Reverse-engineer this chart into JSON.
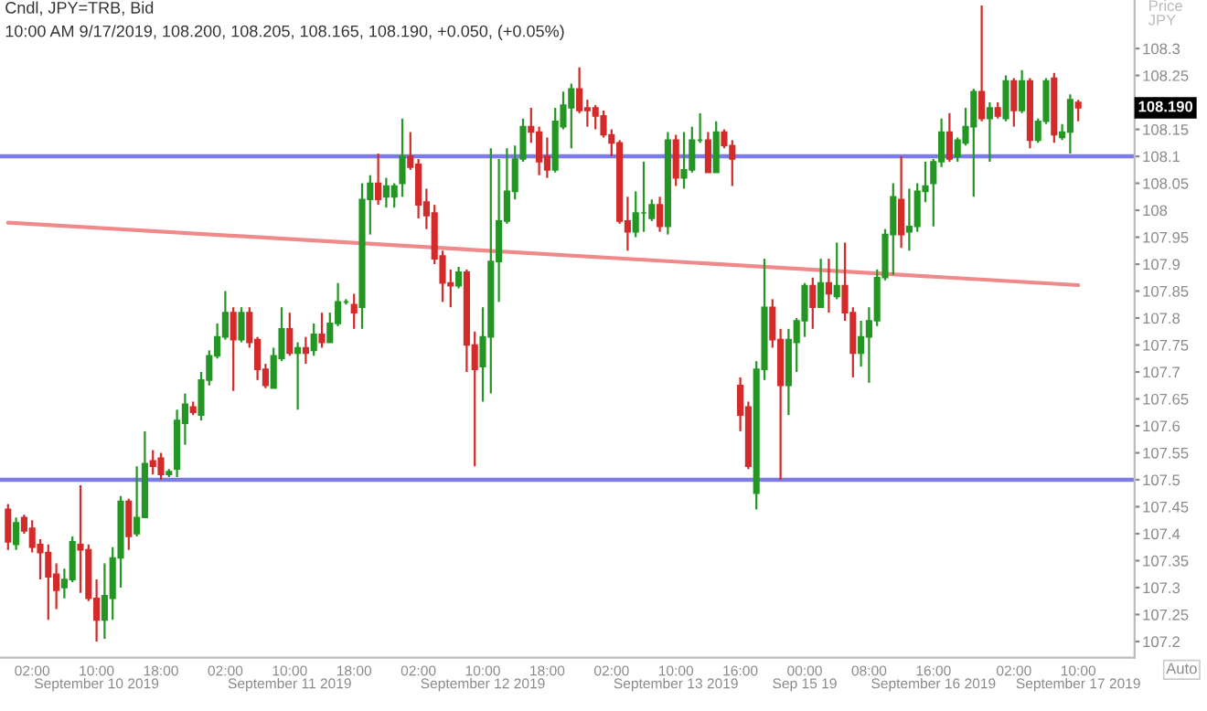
{
  "chart_data": {
    "type": "candlestick",
    "title": "Cndl, JPY=TRB, Bid",
    "subtitle": "10:00 AM 9/17/2019, 108.200, 108.205, 108.165, 108.190, +0.050, (+0.05%)",
    "ylabel": "Price\nJPY",
    "categories": [
      null,
      null,
      null,
      "02:00",
      null,
      null,
      null,
      null,
      null,
      null,
      null,
      "10:00\nSeptember 10 2019",
      null,
      null,
      null,
      null,
      null,
      null,
      null,
      "18:00",
      null,
      null,
      null,
      null,
      null,
      null,
      null,
      "02:00",
      null,
      null,
      null,
      null,
      null,
      null,
      null,
      "10:00\nSeptember 11 2019",
      null,
      null,
      null,
      null,
      null,
      null,
      null,
      "18:00",
      null,
      null,
      null,
      null,
      null,
      null,
      null,
      "02:00",
      null,
      null,
      null,
      null,
      null,
      null,
      null,
      "10:00\nSeptember 12 2019",
      null,
      null,
      null,
      null,
      null,
      null,
      null,
      "18:00",
      null,
      null,
      null,
      null,
      null,
      null,
      null,
      "02:00",
      null,
      null,
      null,
      null,
      null,
      null,
      null,
      "10:00\nSeptember 13 2019",
      null,
      null,
      null,
      null,
      null,
      null,
      null,
      "16:00",
      null,
      null,
      null,
      null,
      null,
      null,
      null,
      "00:00\nSep 15 19",
      null,
      null,
      null,
      null,
      null,
      null,
      null,
      "08:00",
      null,
      null,
      null,
      null,
      null,
      null,
      null,
      "16:00\nSeptember 16 2019",
      null,
      null,
      null,
      null,
      null,
      null,
      null,
      null,
      null,
      "02:00",
      null,
      null,
      null,
      null,
      null,
      null,
      null,
      "10:00\nSeptember 17 2019"
    ],
    "ohlc": [
      [
        107.445,
        107.455,
        107.37,
        107.385
      ],
      [
        107.38,
        107.43,
        107.37,
        107.42
      ],
      [
        107.43,
        107.435,
        107.4,
        107.405
      ],
      [
        107.41,
        107.425,
        107.365,
        107.375
      ],
      [
        107.38,
        107.39,
        107.315,
        107.365
      ],
      [
        107.365,
        107.38,
        107.24,
        107.32
      ],
      [
        107.325,
        107.345,
        107.26,
        107.295
      ],
      [
        107.3,
        107.335,
        107.28,
        107.315
      ],
      [
        107.315,
        107.395,
        107.31,
        107.385
      ],
      [
        107.38,
        107.49,
        107.29,
        107.37
      ],
      [
        107.37,
        107.38,
        107.275,
        107.28
      ],
      [
        107.28,
        107.315,
        107.2,
        107.24
      ],
      [
        107.24,
        107.345,
        107.205,
        107.285
      ],
      [
        107.28,
        107.375,
        107.24,
        107.355
      ],
      [
        107.355,
        107.47,
        107.3,
        107.46
      ],
      [
        107.46,
        107.465,
        107.37,
        107.395
      ],
      [
        107.4,
        107.525,
        107.395,
        107.43
      ],
      [
        107.43,
        107.59,
        107.43,
        107.53
      ],
      [
        107.535,
        107.555,
        107.51,
        107.525
      ],
      [
        107.54,
        107.55,
        107.5,
        107.51
      ],
      [
        107.51,
        107.52,
        107.505,
        107.515
      ],
      [
        107.52,
        107.63,
        107.505,
        107.61
      ],
      [
        107.605,
        107.66,
        107.565,
        107.64
      ],
      [
        107.635,
        107.645,
        107.62,
        107.625
      ],
      [
        107.62,
        107.7,
        107.61,
        107.685
      ],
      [
        107.685,
        107.74,
        107.675,
        107.73
      ],
      [
        107.73,
        107.79,
        107.725,
        107.765
      ],
      [
        107.765,
        107.85,
        107.76,
        107.81
      ],
      [
        107.81,
        107.82,
        107.665,
        107.76
      ],
      [
        107.76,
        107.82,
        107.755,
        107.81
      ],
      [
        107.81,
        107.82,
        107.745,
        107.755
      ],
      [
        107.76,
        107.765,
        107.685,
        107.705
      ],
      [
        107.705,
        107.715,
        107.67,
        107.675
      ],
      [
        107.67,
        107.745,
        107.67,
        107.73
      ],
      [
        107.725,
        107.82,
        107.72,
        107.78
      ],
      [
        107.78,
        107.81,
        107.73,
        107.735
      ],
      [
        107.735,
        107.755,
        107.63,
        107.745
      ],
      [
        107.745,
        107.765,
        107.715,
        107.735
      ],
      [
        107.74,
        107.79,
        107.73,
        107.77
      ],
      [
        107.77,
        107.81,
        107.745,
        107.755
      ],
      [
        107.755,
        107.81,
        107.755,
        107.79
      ],
      [
        107.79,
        107.865,
        107.785,
        107.83
      ],
      [
        107.83,
        107.835,
        107.825,
        107.83
      ],
      [
        107.825,
        107.845,
        107.78,
        107.81
      ],
      [
        107.82,
        108.05,
        107.78,
        108.02
      ],
      [
        108.02,
        108.065,
        107.955,
        108.05
      ],
      [
        108.05,
        108.105,
        108.01,
        108.02
      ],
      [
        108.025,
        108.06,
        108.005,
        108.045
      ],
      [
        108.025,
        108.05,
        108.005,
        108.045
      ],
      [
        108.05,
        108.17,
        108.025,
        108.1
      ],
      [
        108.1,
        108.145,
        108.075,
        108.08
      ],
      [
        108.085,
        108.095,
        107.985,
        108.01
      ],
      [
        108.015,
        108.04,
        107.965,
        107.99
      ],
      [
        107.995,
        108.01,
        107.9,
        107.91
      ],
      [
        107.915,
        107.925,
        107.83,
        107.865
      ],
      [
        107.865,
        107.89,
        107.82,
        107.86
      ],
      [
        107.86,
        107.895,
        107.855,
        107.885
      ],
      [
        107.885,
        107.89,
        107.7,
        107.75
      ],
      [
        107.75,
        107.775,
        107.525,
        107.705
      ],
      [
        107.71,
        107.82,
        107.645,
        107.765
      ],
      [
        107.765,
        108.115,
        107.66,
        107.905
      ],
      [
        107.905,
        108.095,
        107.83,
        107.98
      ],
      [
        107.98,
        108.115,
        107.975,
        108.035
      ],
      [
        108.035,
        108.12,
        108.02,
        108.095
      ],
      [
        108.095,
        108.17,
        108.09,
        108.155
      ],
      [
        108.155,
        108.19,
        108.125,
        108.145
      ],
      [
        108.145,
        108.155,
        108.065,
        108.09
      ],
      [
        108.1,
        108.135,
        108.06,
        108.075
      ],
      [
        108.075,
        108.19,
        108.07,
        108.165
      ],
      [
        108.155,
        108.22,
        108.15,
        108.195
      ],
      [
        108.19,
        108.235,
        108.115,
        108.225
      ],
      [
        108.225,
        108.265,
        108.18,
        108.185
      ],
      [
        108.19,
        108.205,
        108.155,
        108.185
      ],
      [
        108.19,
        108.195,
        108.15,
        108.175
      ],
      [
        108.175,
        108.185,
        108.135,
        108.14
      ],
      [
        108.14,
        108.15,
        108.1,
        108.125
      ],
      [
        108.125,
        108.13,
        107.975,
        107.98
      ],
      [
        107.98,
        108.025,
        107.925,
        107.96
      ],
      [
        107.96,
        108.035,
        107.95,
        107.995
      ],
      [
        107.995,
        108.09,
        107.96,
        107.995
      ],
      [
        107.985,
        108.02,
        107.98,
        108.01
      ],
      [
        108.01,
        108.025,
        107.96,
        107.97
      ],
      [
        107.97,
        108.145,
        107.955,
        108.13
      ],
      [
        108.13,
        108.14,
        108.045,
        108.06
      ],
      [
        108.06,
        108.145,
        108.04,
        108.075
      ],
      [
        108.075,
        108.155,
        108.07,
        108.13
      ],
      [
        108.13,
        108.18,
        108.125,
        108.13
      ],
      [
        108.13,
        108.145,
        108.07,
        108.07
      ],
      [
        108.07,
        108.165,
        108.07,
        108.145
      ],
      [
        108.145,
        108.15,
        108.115,
        108.12
      ],
      [
        108.12,
        108.13,
        108.045,
        108.095
      ],
      [
        107.675,
        107.69,
        107.59,
        107.62
      ],
      [
        107.635,
        107.645,
        107.52,
        107.525
      ],
      [
        107.475,
        107.72,
        107.445,
        107.705
      ],
      [
        107.705,
        107.91,
        107.685,
        107.82
      ],
      [
        107.82,
        107.835,
        107.745,
        107.76
      ],
      [
        107.76,
        107.78,
        107.5,
        107.675
      ],
      [
        107.675,
        107.78,
        107.62,
        107.76
      ],
      [
        107.755,
        107.8,
        107.7,
        107.795
      ],
      [
        107.795,
        107.865,
        107.765,
        107.86
      ],
      [
        107.86,
        107.875,
        107.78,
        107.82
      ],
      [
        107.82,
        107.91,
        107.82,
        107.865
      ],
      [
        107.865,
        107.91,
        107.81,
        107.845
      ],
      [
        107.84,
        107.94,
        107.835,
        107.86
      ],
      [
        107.86,
        107.94,
        107.795,
        107.81
      ],
      [
        107.81,
        107.82,
        107.69,
        107.735
      ],
      [
        107.735,
        107.795,
        107.71,
        107.765
      ],
      [
        107.765,
        107.82,
        107.68,
        107.795
      ],
      [
        107.795,
        107.89,
        107.785,
        107.875
      ],
      [
        107.875,
        107.965,
        107.87,
        107.955
      ],
      [
        107.955,
        108.05,
        107.88,
        108.025
      ],
      [
        108.02,
        108.1,
        107.93,
        107.955
      ],
      [
        107.96,
        108.04,
        107.925,
        107.97
      ],
      [
        107.97,
        108.05,
        107.96,
        108.035
      ],
      [
        108.035,
        108.09,
        108.015,
        108.045
      ],
      [
        108.05,
        108.095,
        107.97,
        108.09
      ],
      [
        108.09,
        108.17,
        108.08,
        108.145
      ],
      [
        108.145,
        108.18,
        108.09,
        108.095
      ],
      [
        108.1,
        108.135,
        108.09,
        108.13
      ],
      [
        108.125,
        108.19,
        108.12,
        108.155
      ],
      [
        108.155,
        108.225,
        108.025,
        108.22
      ],
      [
        108.22,
        108.38,
        108.165,
        108.17
      ],
      [
        108.17,
        108.2,
        108.09,
        108.19
      ],
      [
        108.19,
        108.2,
        108.17,
        108.175
      ],
      [
        108.17,
        108.25,
        108.165,
        108.24
      ],
      [
        108.24,
        108.245,
        108.155,
        108.185
      ],
      [
        108.185,
        108.26,
        108.18,
        108.24
      ],
      [
        108.24,
        108.245,
        108.115,
        108.13
      ],
      [
        108.13,
        108.17,
        108.125,
        108.165
      ],
      [
        108.165,
        108.245,
        108.16,
        108.24
      ],
      [
        108.245,
        108.255,
        108.125,
        108.14
      ],
      [
        108.135,
        108.16,
        108.13,
        108.145
      ],
      [
        108.145,
        108.215,
        108.105,
        108.205
      ],
      [
        108.2,
        108.205,
        108.165,
        108.19
      ]
    ],
    "colors": [
      "#d42a2a",
      "#239623",
      "#d42a2a",
      "#d42a2a",
      "#d42a2a",
      "#d42a2a",
      "#d42a2a",
      "#239623",
      "#239623",
      "#d42a2a",
      "#d42a2a",
      "#d42a2a",
      "#239623",
      "#239623",
      "#239623",
      "#d42a2a",
      "#239623",
      "#239623",
      "#d42a2a",
      "#d42a2a",
      "#239623",
      "#239623",
      "#239623",
      "#d42a2a",
      "#239623",
      "#239623",
      "#239623",
      "#239623",
      "#d42a2a",
      "#239623",
      "#d42a2a",
      "#d42a2a",
      "#d42a2a",
      "#239623",
      "#239623",
      "#d42a2a",
      "#239623",
      "#d42a2a",
      "#239623",
      "#d42a2a",
      "#239623",
      "#239623",
      "#239623",
      "#d42a2a",
      "#239623",
      "#239623",
      "#d42a2a",
      "#239623",
      "#239623",
      "#239623",
      "#d42a2a",
      "#d42a2a",
      "#d42a2a",
      "#d42a2a",
      "#d42a2a",
      "#d42a2a",
      "#239623",
      "#d42a2a",
      "#d42a2a",
      "#239623",
      "#239623",
      "#239623",
      "#239623",
      "#239623",
      "#239623",
      "#d42a2a",
      "#d42a2a",
      "#d42a2a",
      "#239623",
      "#239623",
      "#239623",
      "#d42a2a",
      "#d42a2a",
      "#d42a2a",
      "#d42a2a",
      "#d42a2a",
      "#d42a2a",
      "#d42a2a",
      "#239623",
      "#239623",
      "#239623",
      "#d42a2a",
      "#239623",
      "#d42a2a",
      "#239623",
      "#239623",
      "#239623",
      "#d42a2a",
      "#239623",
      "#d42a2a",
      "#d42a2a",
      "#d42a2a",
      "#d42a2a",
      "#239623",
      "#239623",
      "#d42a2a",
      "#d42a2a",
      "#239623",
      "#239623",
      "#239623",
      "#d42a2a",
      "#239623",
      "#d42a2a",
      "#239623",
      "#d42a2a",
      "#d42a2a",
      "#239623",
      "#239623",
      "#239623",
      "#239623",
      "#239623",
      "#d42a2a",
      "#239623",
      "#239623",
      "#239623",
      "#239623",
      "#239623",
      "#d42a2a",
      "#239623",
      "#239623",
      "#239623",
      "#d42a2a",
      "#239623",
      "#d42a2a",
      "#239623",
      "#d42a2a",
      "#239623",
      "#d42a2a",
      "#239623",
      "#239623",
      "#d42a2a",
      "#239623",
      "#239623",
      "#d42a2a"
    ],
    "series": [
      {
        "type": "line",
        "color": "#f08a8a",
        "values": [
          107.977,
          null,
          null,
          null,
          null,
          null,
          null,
          null,
          null,
          null,
          null,
          null,
          null,
          null,
          null,
          null,
          null,
          null,
          null,
          null,
          null,
          null,
          null,
          null,
          null,
          null,
          null,
          null,
          null,
          null,
          null,
          null,
          null,
          null,
          null,
          null,
          null,
          null,
          null,
          null,
          null,
          null,
          null,
          null,
          null,
          null,
          null,
          null,
          null,
          null,
          null,
          null,
          null,
          null,
          null,
          null,
          null,
          null,
          null,
          null,
          null,
          null,
          null,
          null,
          null,
          null,
          null,
          null,
          null,
          null,
          null,
          null,
          null,
          null,
          null,
          null,
          null,
          null,
          null,
          null,
          null,
          null,
          null,
          null,
          null,
          null,
          null,
          null,
          null,
          null,
          null,
          null,
          null,
          null,
          null,
          null,
          null,
          null,
          null,
          null,
          null,
          null,
          null,
          null,
          null,
          null,
          null,
          null,
          null,
          null,
          null,
          null,
          null,
          null,
          null,
          null,
          null,
          null,
          null,
          null,
          null,
          null,
          null,
          null,
          null,
          null,
          null,
          null,
          null,
          null,
          null,
          null,
          null,
          107.861
        ]
      }
    ],
    "ref_lines": [
      {
        "axis": "y",
        "value": 108.1,
        "color": "#7b7bea"
      },
      {
        "axis": "y",
        "value": 107.5,
        "color": "#7b7bea"
      }
    ],
    "ylim": [
      107.17,
      108.39
    ],
    "yticks": [
      107.2,
      107.25,
      107.3,
      107.35,
      107.4,
      107.45,
      107.5,
      107.55,
      107.6,
      107.65,
      107.7,
      107.75,
      107.8,
      107.85,
      107.9,
      107.95,
      108,
      108.05,
      108.1,
      108.15,
      108.2,
      108.25,
      108.3
    ],
    "annotations": [
      "108.190",
      "Auto"
    ]
  }
}
